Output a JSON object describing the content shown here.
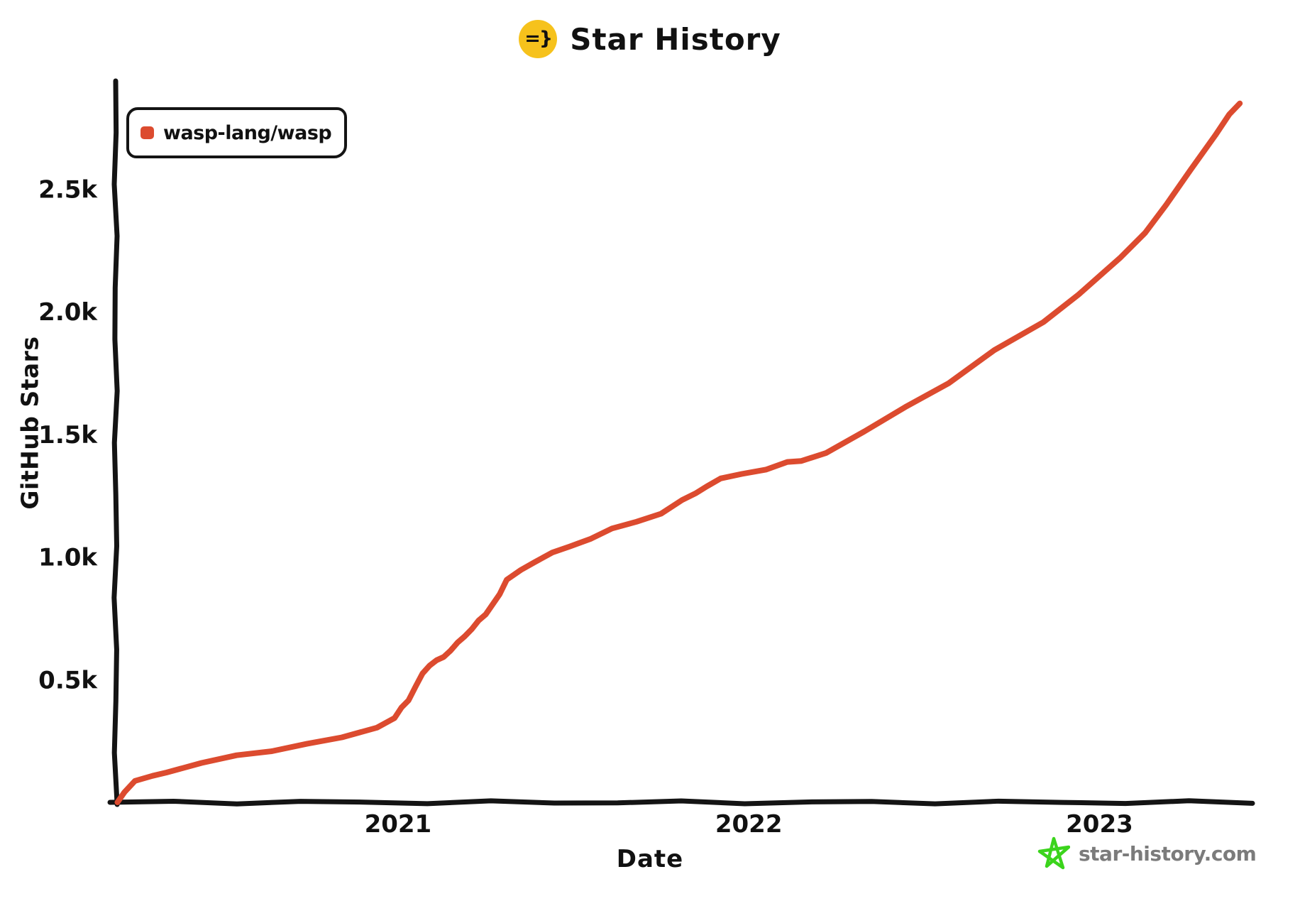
{
  "header": {
    "title": "Star History",
    "icon_text": "=}",
    "icon_bg": "#f6c21c"
  },
  "legend": {
    "items": [
      {
        "label": "wasp-lang/wasp",
        "color": "#dc4b2f"
      }
    ]
  },
  "watermark": {
    "text": "star-history.com",
    "text_color": "#7b7b7b",
    "star_color": "#3bd41c"
  },
  "colors": {
    "axis": "#141414",
    "background": "#ffffff"
  },
  "chart_data": {
    "type": "line",
    "title": "Star History",
    "xlabel": "Date",
    "ylabel": "GitHub Stars",
    "grid": false,
    "legend_position": "top-left",
    "xlim": [
      2020.195,
      2023.43
    ],
    "ylim": [
      0,
      2930
    ],
    "x_ticks": [
      {
        "value": 2021,
        "label": "2021"
      },
      {
        "value": 2022,
        "label": "2022"
      },
      {
        "value": 2023,
        "label": "2023"
      }
    ],
    "y_ticks": [
      {
        "value": 500,
        "label": "0.5k"
      },
      {
        "value": 1000,
        "label": "1.0k"
      },
      {
        "value": 1500,
        "label": "1.5k"
      },
      {
        "value": 2000,
        "label": "2.0k"
      },
      {
        "value": 2500,
        "label": "2.5k"
      }
    ],
    "series": [
      {
        "name": "wasp-lang/wasp",
        "color": "#dc4b2f",
        "points": [
          [
            2020.2,
            0
          ],
          [
            2020.22,
            45
          ],
          [
            2020.25,
            84
          ],
          [
            2020.3,
            108
          ],
          [
            2020.34,
            125
          ],
          [
            2020.44,
            157
          ],
          [
            2020.54,
            192
          ],
          [
            2020.64,
            212
          ],
          [
            2020.74,
            235
          ],
          [
            2020.84,
            265
          ],
          [
            2020.94,
            308
          ],
          [
            2020.99,
            340
          ],
          [
            2021.01,
            387
          ],
          [
            2021.03,
            419
          ],
          [
            2021.05,
            468
          ],
          [
            2021.07,
            526
          ],
          [
            2021.09,
            561
          ],
          [
            2021.11,
            576
          ],
          [
            2021.13,
            593
          ],
          [
            2021.15,
            622
          ],
          [
            2021.17,
            648
          ],
          [
            2021.19,
            677
          ],
          [
            2021.21,
            709
          ],
          [
            2021.23,
            738
          ],
          [
            2021.25,
            767
          ],
          [
            2021.29,
            852
          ],
          [
            2021.31,
            904
          ],
          [
            2021.35,
            948
          ],
          [
            2021.39,
            983
          ],
          [
            2021.44,
            1015
          ],
          [
            2021.49,
            1044
          ],
          [
            2021.55,
            1078
          ],
          [
            2021.61,
            1113
          ],
          [
            2021.68,
            1145
          ],
          [
            2021.75,
            1180
          ],
          [
            2021.81,
            1229
          ],
          [
            2021.85,
            1262
          ],
          [
            2021.88,
            1291
          ],
          [
            2021.92,
            1317
          ],
          [
            2021.98,
            1340
          ],
          [
            2022.05,
            1360
          ],
          [
            2022.11,
            1384
          ],
          [
            2022.15,
            1393
          ],
          [
            2022.22,
            1427
          ],
          [
            2022.33,
            1509
          ],
          [
            2022.45,
            1616
          ],
          [
            2022.57,
            1712
          ],
          [
            2022.7,
            1840
          ],
          [
            2022.84,
            1959
          ],
          [
            2022.94,
            2073
          ],
          [
            2023.06,
            2218
          ],
          [
            2023.13,
            2323
          ],
          [
            2023.19,
            2439
          ],
          [
            2023.26,
            2576
          ],
          [
            2023.33,
            2721
          ],
          [
            2023.37,
            2808
          ],
          [
            2023.4,
            2846
          ]
        ]
      }
    ]
  }
}
